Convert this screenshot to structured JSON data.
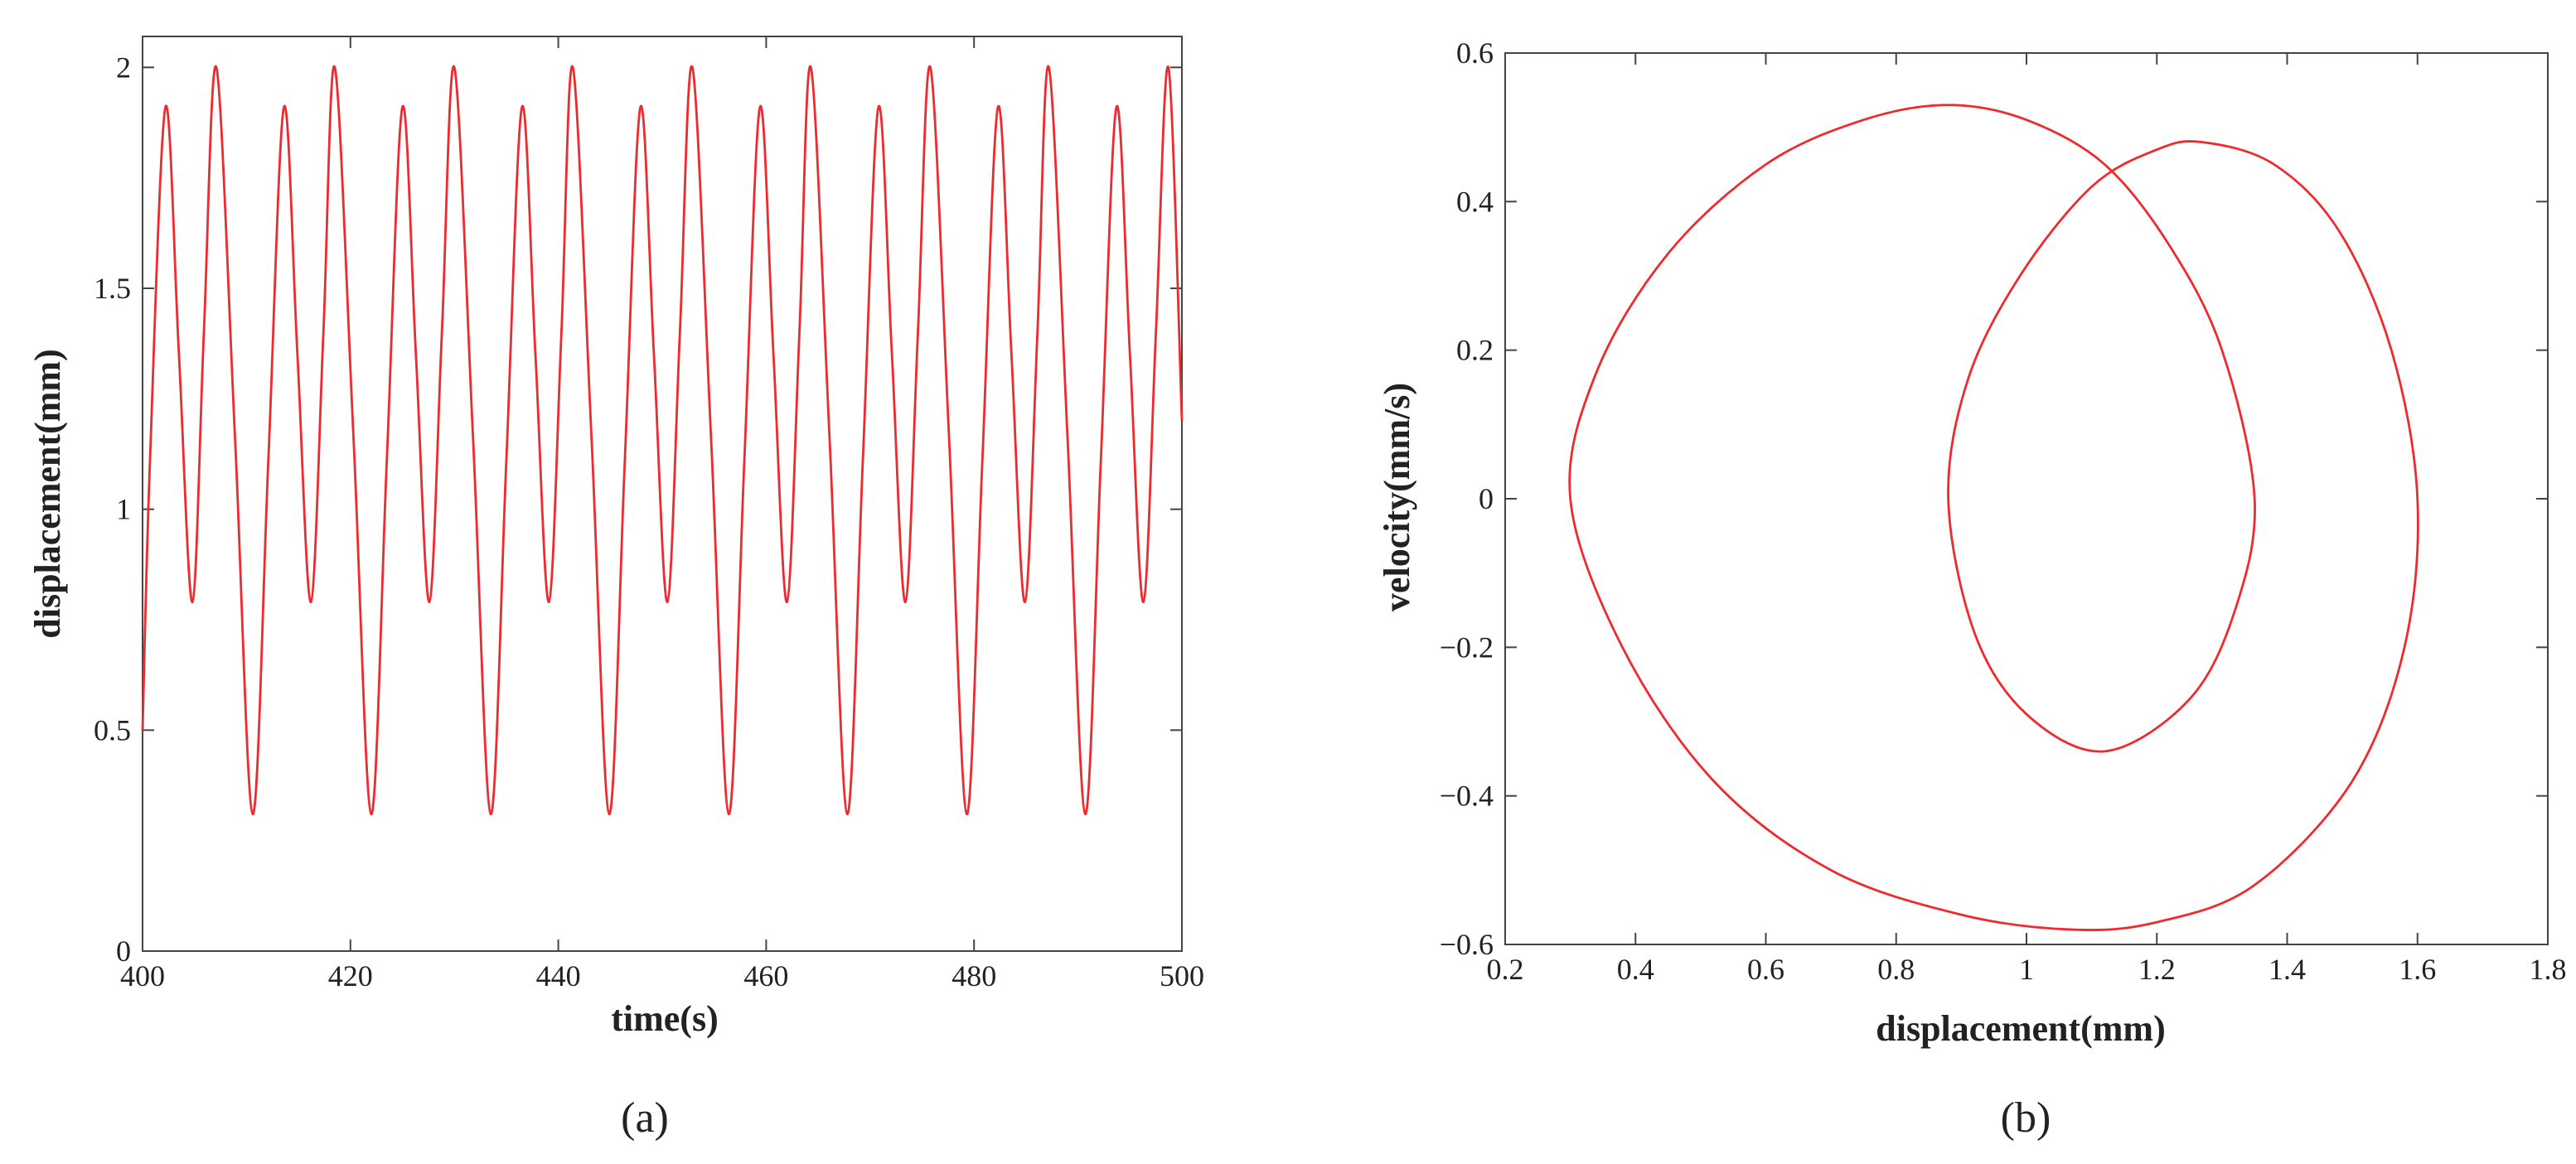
{
  "chart_data": [
    {
      "type": "line",
      "caption": "(a)",
      "x_label": "time(s)",
      "y_label": "displacement(mm)",
      "xlim": [
        400,
        500
      ],
      "xticks": [
        400,
        420,
        440,
        460,
        480,
        500
      ],
      "ylim": [
        0,
        2.07
      ],
      "yticks": [
        0,
        0.5,
        1,
        1.5,
        2
      ],
      "color": "#ee2a2e",
      "x": [
        400,
        400.7,
        402.2,
        403.5,
        404.8,
        405.9,
        407.1,
        408.9,
        410.6,
        412.1,
        413.6,
        414.9,
        416.2,
        417.4,
        418.5,
        420.3,
        422.0,
        423.5,
        425.0,
        426.3,
        427.6,
        428.8,
        430.0,
        431.8,
        433.5,
        435.0,
        436.5,
        437.8,
        439.1,
        440.3,
        441.4,
        443.2,
        444.9,
        446.4,
        447.9,
        449.2,
        450.5,
        451.7,
        452.9,
        454.7,
        456.4,
        457.9,
        459.4,
        460.7,
        462.0,
        463.2,
        464.3,
        466.1,
        467.8,
        469.3,
        470.8,
        472.1,
        473.4,
        474.6,
        475.8,
        477.6,
        479.3,
        480.8,
        482.3,
        483.6,
        484.9,
        486.1,
        487.2,
        489.0,
        490.7,
        492.2,
        493.7,
        495.0,
        496.3,
        497.5,
        498.7,
        500
      ],
      "values": [
        0.5,
        1.1,
        1.91,
        1.35,
        0.79,
        1.4,
        2.0,
        1.16,
        0.31,
        1.11,
        1.91,
        1.35,
        0.79,
        1.4,
        2.0,
        1.16,
        0.31,
        1.11,
        1.91,
        1.35,
        0.79,
        1.4,
        2.0,
        1.16,
        0.31,
        1.11,
        1.91,
        1.35,
        0.79,
        1.4,
        2.0,
        1.16,
        0.31,
        1.11,
        1.91,
        1.35,
        0.79,
        1.4,
        2.0,
        1.16,
        0.31,
        1.11,
        1.91,
        1.35,
        0.79,
        1.4,
        2.0,
        1.16,
        0.31,
        1.11,
        1.91,
        1.35,
        0.79,
        1.4,
        2.0,
        1.16,
        0.31,
        1.11,
        1.91,
        1.35,
        0.79,
        1.4,
        2.0,
        1.16,
        0.31,
        1.11,
        1.91,
        1.35,
        0.79,
        1.4,
        2.0,
        1.2
      ]
    },
    {
      "type": "line",
      "caption": "(b)",
      "x_label": "displacement(mm)",
      "y_label": "velocity(mm/s)",
      "xlim": [
        0.2,
        1.8
      ],
      "xticks": [
        0.2,
        0.4,
        0.6,
        0.8,
        1,
        1.2,
        1.4,
        1.6,
        1.8
      ],
      "ylim": [
        -0.6,
        0.6
      ],
      "yticks": [
        {
          "value": -0.6,
          "label": "−0.6"
        },
        {
          "value": -0.4,
          "label": "−0.4"
        },
        {
          "value": -0.2,
          "label": "−0.2"
        },
        0,
        0.2,
        0.4,
        0.6
      ],
      "color": "#ee2a2e",
      "x": [
        1.6,
        1.58,
        1.5,
        1.35,
        1.2,
        1.07,
        0.9,
        0.7,
        0.52,
        0.38,
        0.3,
        0.34,
        0.45,
        0.6,
        0.75,
        0.88,
        1.0,
        1.12,
        1.22,
        1.3,
        1.35,
        1.32,
        1.25,
        1.12,
        1.0,
        0.92,
        0.88,
        0.91,
        0.99,
        1.1,
        1.2,
        1.27,
        1.38,
        1.48,
        1.56,
        1.6
      ],
      "values": [
        0,
        -0.2,
        -0.38,
        -0.52,
        -0.57,
        -0.58,
        -0.56,
        -0.5,
        -0.38,
        -0.2,
        0,
        0.17,
        0.33,
        0.45,
        0.51,
        0.53,
        0.51,
        0.45,
        0.34,
        0.2,
        0,
        -0.15,
        -0.27,
        -0.34,
        -0.29,
        -0.18,
        0,
        0.16,
        0.3,
        0.42,
        0.47,
        0.48,
        0.45,
        0.36,
        0.2,
        0
      ]
    }
  ]
}
